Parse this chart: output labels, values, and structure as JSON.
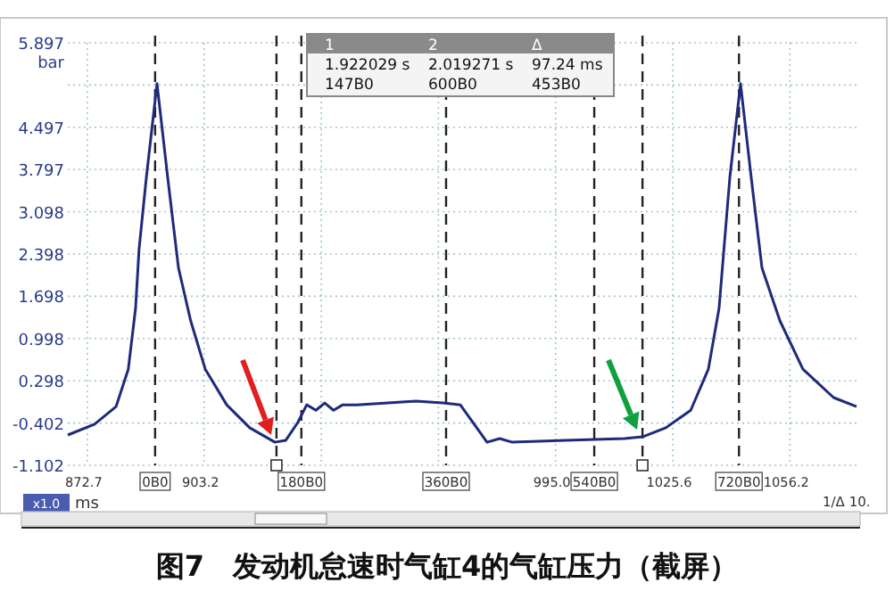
{
  "chart_data": {
    "type": "line",
    "title": "图7　发动机怠速时气缸4的气缸压力（截屏）",
    "xlabel": "ms",
    "ylabel": "bar",
    "x": [
      867.6,
      874.6,
      880.2,
      883.4,
      885.3,
      886.2,
      888.1,
      890.9,
      893.7,
      896.5,
      899.7,
      903.5,
      909.1,
      915.1,
      921.7,
      924.5,
      927.7,
      930.0,
      932.4,
      934.7,
      937.0,
      939.4,
      943.1,
      958.5,
      965.5,
      970.1,
      973.4,
      977.1,
      980.4,
      983.7,
      997.6,
      1013.0,
      1017.7,
      1023.8,
      1030.3,
      1034.9,
      1037.7,
      1040.5,
      1043.3,
      1046.1,
      1048.9,
      1053.6,
      1059.6,
      1067.6,
      1073.6
    ],
    "series": [
      {
        "color": "#1f2a7a",
        "values": [
          -0.6,
          -0.42,
          -0.13,
          0.49,
          1.5,
          2.47,
          3.66,
          5.22,
          3.66,
          2.17,
          1.29,
          0.49,
          -0.1,
          -0.48,
          -0.72,
          -0.69,
          -0.39,
          -0.1,
          -0.19,
          -0.07,
          -0.19,
          -0.1,
          -0.1,
          -0.04,
          -0.07,
          -0.1,
          -0.39,
          -0.72,
          -0.66,
          -0.72,
          -0.69,
          -0.66,
          -0.63,
          -0.48,
          -0.19,
          0.49,
          1.5,
          3.66,
          5.22,
          3.66,
          2.17,
          1.29,
          0.49,
          0.02,
          -0.13
        ]
      }
    ],
    "xlim": [
      867.6,
      1073.6
    ],
    "ylim": [
      -1.102,
      5.897
    ],
    "xticks": [
      872.7,
      903.2,
      {
        "value": 933.8,
        "label": null
      },
      {
        "value": 964.4,
        "label": null
      },
      {
        "value": 995.0,
        "label": "995.0"
      },
      1025.6,
      1056.2
    ],
    "yticks": [
      5.897,
      {
        "value": 5.197,
        "label": null
      },
      4.497,
      3.797,
      3.098,
      2.398,
      1.698,
      0.998,
      0.298,
      -0.402,
      -1.102
    ],
    "grid": true,
    "line_style": "solid",
    "ref_lines": [
      {
        "axis": "x",
        "value": 890.4,
        "label": "0B0",
        "color": "#222222",
        "line_style": "dashed"
      },
      {
        "axis": "x",
        "value": 922.1,
        "label": null,
        "color": "#222222",
        "line_style": "dashed"
      },
      {
        "axis": "x",
        "value": 928.6,
        "label": "180B0",
        "color": "#222222",
        "line_style": "dashed"
      },
      {
        "axis": "x",
        "value": 966.4,
        "label": "360B0",
        "color": "#222222",
        "line_style": "dashed"
      },
      {
        "axis": "x",
        "value": 1005.1,
        "label": "540B0",
        "color": "#222222",
        "line_style": "dashed"
      },
      {
        "axis": "x",
        "value": 1017.7,
        "label": null,
        "color": "#222222",
        "line_style": "dashed"
      },
      {
        "axis": "x",
        "value": 1042.9,
        "label": "720B0",
        "color": "#222222",
        "line_style": "dashed"
      }
    ],
    "annotations": [
      "1",
      "2",
      "Δ",
      "1.922029 s",
      "2.019271 s",
      "97.24 ms",
      "147B0",
      "600B0",
      "453B0",
      "x1.0",
      "1/Δ 10."
    ]
  }
}
